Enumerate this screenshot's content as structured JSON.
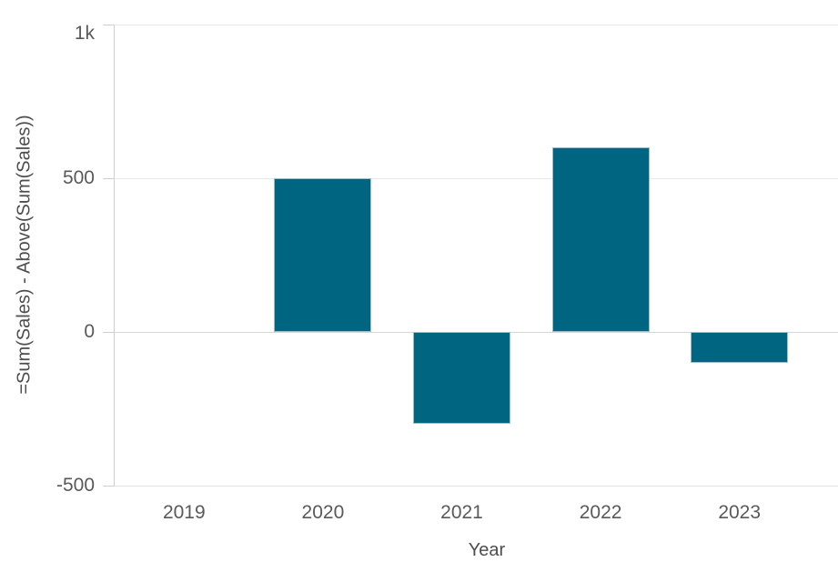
{
  "chart_data": {
    "type": "bar",
    "categories": [
      "2019",
      "2020",
      "2021",
      "2022",
      "2023"
    ],
    "values": [
      0,
      500,
      -300,
      600,
      -100
    ],
    "title": "",
    "xlabel": "Year",
    "ylabel": "=Sum(Sales) - Above(Sum(Sales))",
    "ylim": [
      -500,
      1000
    ],
    "yticks": [
      {
        "value": 1000,
        "label": "1k"
      },
      {
        "value": 500,
        "label": "500"
      },
      {
        "value": 0,
        "label": "0"
      },
      {
        "value": -500,
        "label": "-500"
      }
    ],
    "grid": "horizontal",
    "legend": false,
    "bar_color": "#006580",
    "bar_border_color": "#9dbfca"
  },
  "colors": {
    "gridline": "#e8e8e8",
    "zero_line": "#d6d6d6",
    "axis_line": "#cfcfcf",
    "tick_text": "#595959",
    "axis_title_text": "#4d4d4d",
    "background": "#ffffff"
  }
}
